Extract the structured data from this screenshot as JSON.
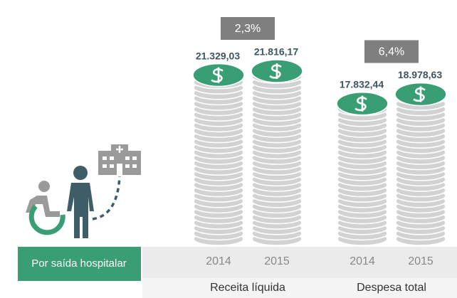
{
  "chart_data": {
    "type": "coin-stack",
    "label": "Por saída hospitalar",
    "categories": [
      "2014",
      "2015"
    ],
    "series": [
      {
        "name": "Receita líquida",
        "color": "#3a9e74",
        "values": [
          21329.03,
          21816.17
        ],
        "value_labels": [
          "21.329,03",
          "21.816,17"
        ],
        "change": 2.3,
        "change_label": "2,3%"
      },
      {
        "name": "Despesa total",
        "color": "#3a9e74",
        "values": [
          17832.44,
          18978.63
        ],
        "value_labels": [
          "17.832,44",
          "18.978,63"
        ],
        "change": 6.4,
        "change_label": "6,4%"
      }
    ]
  }
}
